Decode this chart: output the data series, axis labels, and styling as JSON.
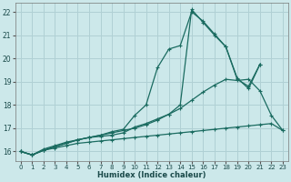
{
  "xlabel": "Humidex (Indice chaleur)",
  "ylabel": "",
  "xlim": [
    -0.5,
    23.5
  ],
  "ylim": [
    15.6,
    22.4
  ],
  "xticks": [
    0,
    1,
    2,
    3,
    4,
    5,
    6,
    7,
    8,
    9,
    10,
    11,
    12,
    13,
    14,
    15,
    16,
    17,
    18,
    19,
    20,
    21,
    22,
    23
  ],
  "yticks": [
    16,
    17,
    18,
    19,
    20,
    21,
    22
  ],
  "bg_color": "#cce8ea",
  "grid_color": "#b0d0d4",
  "line_color": "#1a6b60",
  "series": [
    {
      "x": [
        0,
        1,
        2,
        3,
        4,
        5,
        6,
        7,
        8,
        9,
        10,
        11,
        12,
        13,
        14,
        15,
        16,
        17,
        18,
        19,
        20,
        21
      ],
      "y": [
        16.0,
        15.85,
        16.1,
        16.25,
        16.4,
        16.5,
        16.6,
        16.65,
        16.7,
        16.8,
        17.05,
        17.2,
        17.4,
        17.6,
        18.0,
        22.1,
        21.55,
        21.0,
        20.5,
        19.1,
        18.8,
        19.75
      ]
    },
    {
      "x": [
        0,
        1,
        2,
        3,
        4,
        5,
        6,
        7,
        8,
        9,
        10,
        11,
        12,
        13,
        14,
        15,
        16,
        17,
        18,
        19,
        20,
        21,
        22,
        23
      ],
      "y": [
        16.0,
        15.85,
        16.05,
        16.15,
        16.25,
        16.35,
        16.4,
        16.45,
        16.5,
        16.55,
        16.6,
        16.65,
        16.7,
        16.75,
        16.8,
        16.85,
        16.9,
        16.95,
        17.0,
        17.05,
        17.1,
        17.15,
        17.2,
        16.9
      ]
    },
    {
      "x": [
        0,
        1,
        2,
        3,
        4,
        5,
        6,
        7,
        8,
        9,
        10,
        11,
        12,
        13,
        14,
        15,
        16,
        17,
        18,
        19,
        20,
        21,
        22,
        23
      ],
      "y": [
        16.0,
        15.85,
        16.05,
        16.2,
        16.35,
        16.5,
        16.6,
        16.7,
        16.8,
        16.9,
        17.0,
        17.15,
        17.35,
        17.6,
        17.85,
        18.2,
        18.55,
        18.85,
        19.1,
        19.05,
        19.1,
        18.6,
        17.55,
        16.9
      ]
    },
    {
      "x": [
        0,
        1,
        2,
        3,
        4,
        5,
        6,
        7,
        8,
        9,
        10,
        11,
        12,
        13,
        14,
        15,
        16,
        17,
        18,
        19,
        20,
        21
      ],
      "y": [
        16.0,
        15.85,
        16.05,
        16.2,
        16.35,
        16.5,
        16.6,
        16.7,
        16.85,
        16.95,
        17.55,
        18.0,
        19.6,
        20.4,
        20.55,
        22.0,
        21.6,
        21.05,
        20.5,
        19.15,
        18.7,
        19.75
      ]
    }
  ]
}
